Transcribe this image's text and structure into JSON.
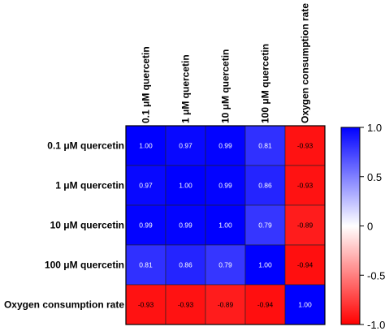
{
  "chart_data": {
    "type": "heatmap",
    "row_labels": [
      "0.1 μM quercetin",
      "1 μM quercetin",
      "10 μM quercetin",
      "100 μM quercetin",
      "Oxygen consumption rate"
    ],
    "col_labels": [
      "0.1 μM quercetin",
      "1 μM quercetin",
      "10 μM quercetin",
      "100 μM quercetin",
      "Oxygen consumption rate"
    ],
    "values": [
      [
        1.0,
        0.97,
        0.99,
        0.81,
        -0.93
      ],
      [
        0.97,
        1.0,
        0.99,
        0.86,
        -0.93
      ],
      [
        0.99,
        0.99,
        1.0,
        0.79,
        -0.89
      ],
      [
        0.81,
        0.86,
        0.79,
        1.0,
        -0.94
      ],
      [
        -0.93,
        -0.93,
        -0.89,
        -0.94,
        1.0
      ]
    ],
    "value_labels": [
      [
        "1.00",
        "0.97",
        "0.99",
        "0.81",
        "-0.93"
      ],
      [
        "0.97",
        "1.00",
        "0.99",
        "0.86",
        "-0.93"
      ],
      [
        "0.99",
        "0.99",
        "1.00",
        "0.79",
        "-0.89"
      ],
      [
        "0.81",
        "0.86",
        "0.79",
        "1.00",
        "-0.94"
      ],
      [
        "-0.93",
        "-0.93",
        "-0.89",
        "-0.94",
        "1.00"
      ]
    ],
    "colorbar": {
      "range": [
        -1.0,
        1.0
      ],
      "ticks": [
        1.0,
        0.5,
        0,
        -0.5,
        -1.0
      ],
      "tick_labels": [
        "1.0",
        "0.5",
        "0",
        "-0.5",
        "-1.0"
      ],
      "colors": {
        "positive": "#0000ff",
        "zero": "#ffffff",
        "negative": "#ff0000"
      }
    },
    "title": "",
    "xlabel": "",
    "ylabel": ""
  }
}
